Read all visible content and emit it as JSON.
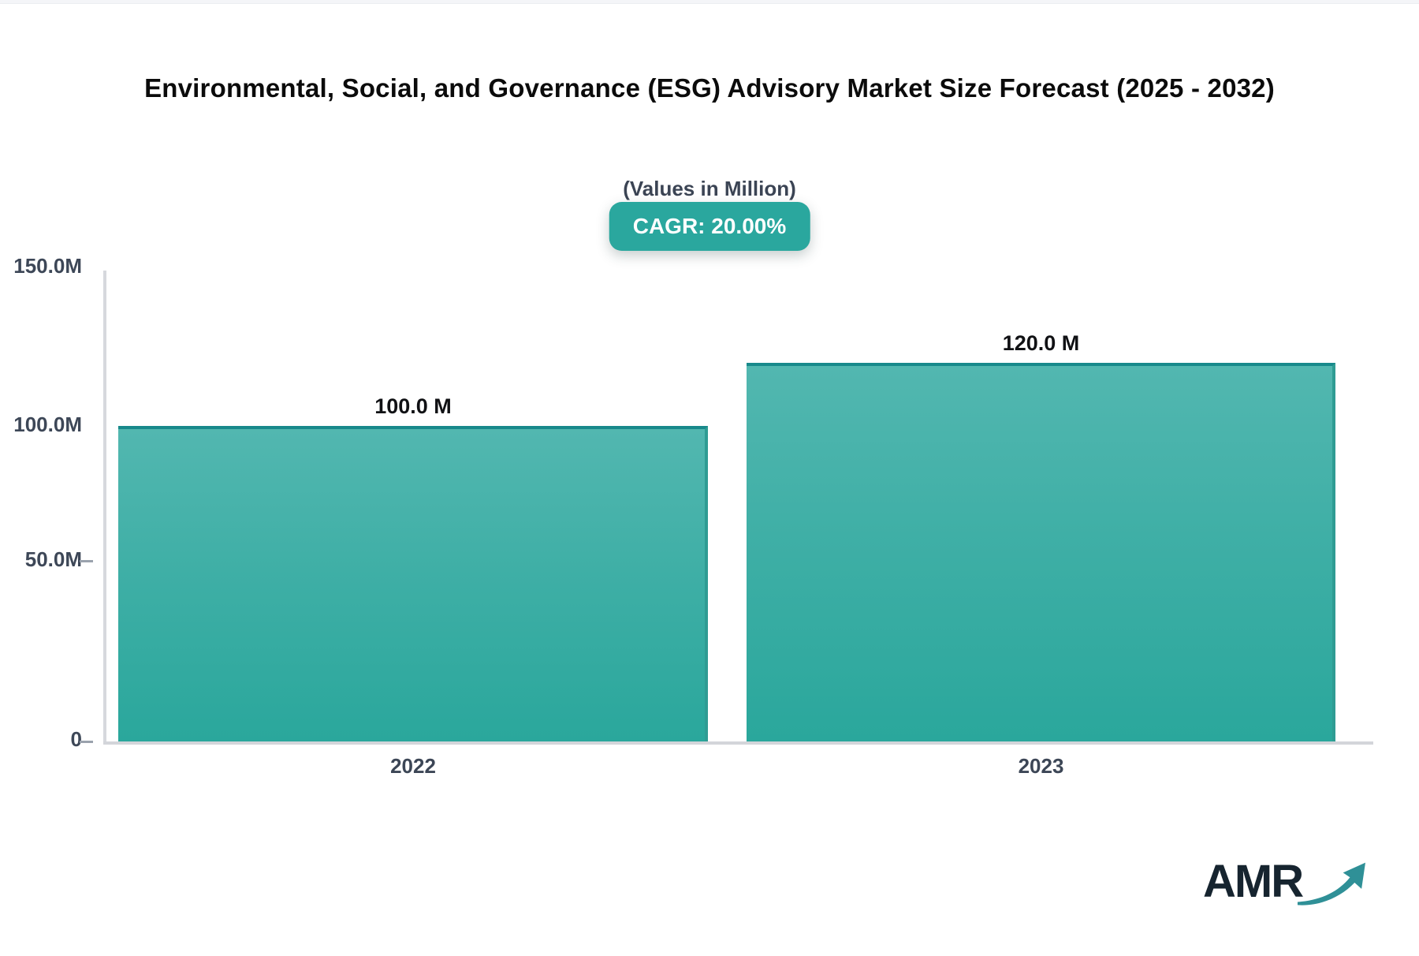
{
  "chart_data": {
    "type": "bar",
    "title": "Environmental, Social, and Governance (ESG) Advisory Market Size Forecast (2025 - 2032)",
    "subtitle": "(Values in Million)",
    "cagr_badge": "CAGR: 20.00%",
    "categories": [
      "2022",
      "2023"
    ],
    "values": [
      100.0,
      120.0
    ],
    "value_labels": [
      "100.0 M",
      "120.0 M"
    ],
    "unit": "Million",
    "ylim": [
      0,
      150
    ],
    "ytick_labels": [
      "150.0M",
      "100.0M",
      "50.0M",
      "0"
    ],
    "grid": false,
    "legend": false,
    "colors": {
      "bar_gradient_top": "#52B7B0",
      "bar_gradient_bottom": "#2AA79C",
      "bar_border_top": "#18898B",
      "badge_background": "#2AA79E",
      "axis_line": "#D6D8DD",
      "tick_label": "#3D4757"
    }
  },
  "branding": {
    "logo_text": "AMR"
  }
}
